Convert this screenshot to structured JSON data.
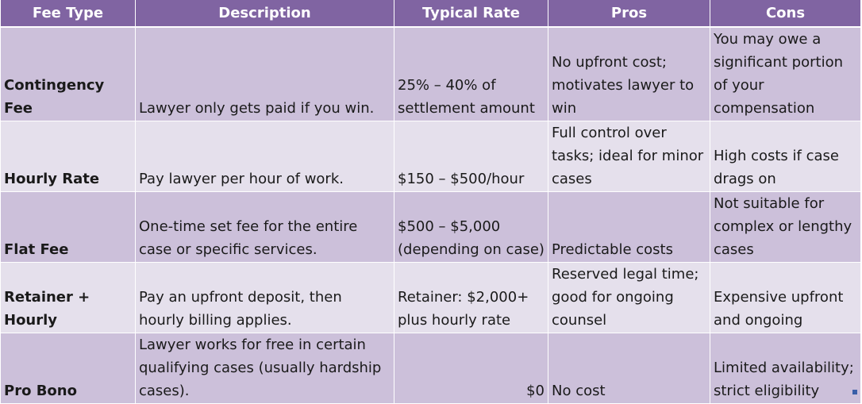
{
  "headers": [
    "Fee Type",
    "Description",
    "Typical Rate",
    "Pros",
    "Cons"
  ],
  "rows": [
    {
      "fee_type": "Contingency Fee",
      "description": "Lawyer only gets paid if you win.",
      "rate": "25% – 40% of settlement amount",
      "pros": "No upfront cost; motivates lawyer to win",
      "cons": "You may owe a significant portion of your compensation"
    },
    {
      "fee_type": "Hourly Rate",
      "description": "Pay lawyer per hour of work.",
      "rate": "$150 – $500/hour",
      "pros": "Full control over tasks; ideal for minor cases",
      "cons": "High costs if case drags on"
    },
    {
      "fee_type": "Flat Fee",
      "description": "One-time set fee for the entire case or specific services.",
      "rate": "$500 – $5,000 (depending on case)",
      "pros": "Predictable costs",
      "cons": "Not suitable for complex or lengthy cases"
    },
    {
      "fee_type": "Retainer + Hourly",
      "description": "Pay an upfront deposit, then hourly billing applies.",
      "rate": "Retainer: $2,000+ plus hourly rate",
      "pros": "Reserved legal time; good for ongoing counsel",
      "cons": "Expensive upfront and ongoing"
    },
    {
      "fee_type": "Pro Bono",
      "description": "Lawyer works for free in certain qualifying cases (usually hardship cases).",
      "rate": "$0",
      "pros": "No cost",
      "cons": "Limited availability; strict eligibility"
    }
  ],
  "colors": {
    "header_bg": "#8064a2",
    "row_dark": "#ccc0da",
    "row_light": "#e5e0ec",
    "fill_handle": "#3a5fa8"
  }
}
